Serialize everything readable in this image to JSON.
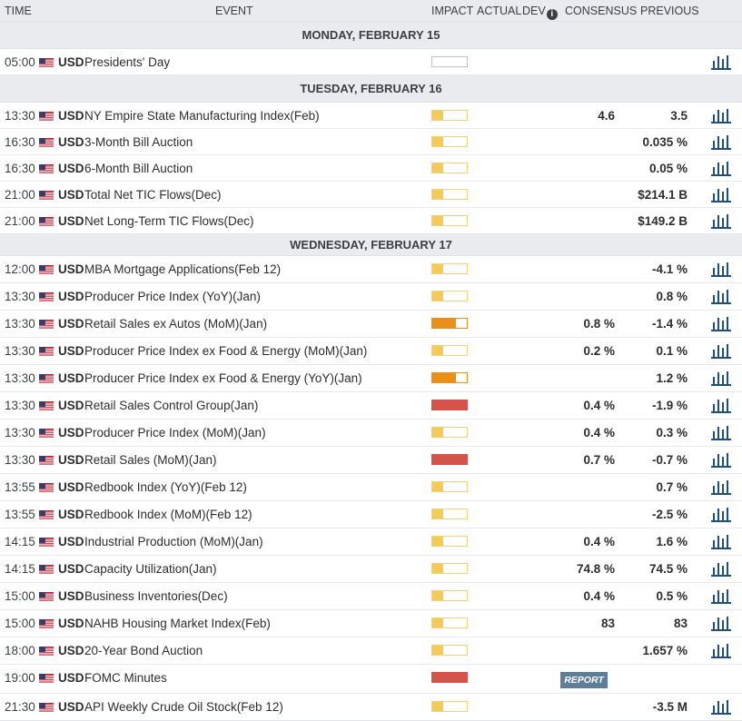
{
  "header": {
    "time": "TIME",
    "event": "EVENT",
    "impact": "IMPACT",
    "actual": "ACTUAL",
    "dev": "DEV",
    "consensus": "CONSENSUS",
    "previous": "PREVIOUS"
  },
  "colors": {
    "impact_low": "#f5c95a",
    "impact_medium": "#e9901a",
    "impact_high": "#d4534b",
    "chart_icon": "#1f4f7a",
    "report_button": "#5e7d99"
  },
  "days": [
    {
      "label": "MONDAY, FEBRUARY 15",
      "events": [
        {
          "time": "05:00",
          "currency": "USD",
          "name": "Presidents' Day",
          "impact": "none",
          "consensus": "",
          "previous": "",
          "chart": true
        }
      ]
    },
    {
      "label": "TUESDAY, FEBRUARY 16",
      "events": [
        {
          "time": "13:30",
          "currency": "USD",
          "name": "NY Empire State Manufacturing Index(Feb)",
          "impact": "low",
          "consensus": "4.6",
          "previous": "3.5",
          "chart": true
        },
        {
          "time": "16:30",
          "currency": "USD",
          "name": "3-Month Bill Auction",
          "impact": "low",
          "consensus": "",
          "previous": "0.035 %",
          "chart": true
        },
        {
          "time": "16:30",
          "currency": "USD",
          "name": "6-Month Bill Auction",
          "impact": "low",
          "consensus": "",
          "previous": "0.05 %",
          "chart": true
        },
        {
          "time": "21:00",
          "currency": "USD",
          "name": "Total Net TIC Flows(Dec)",
          "impact": "low",
          "consensus": "",
          "previous": "$214.1 B",
          "chart": true
        },
        {
          "time": "21:00",
          "currency": "USD",
          "name": "Net Long-Term TIC Flows(Dec)",
          "impact": "low",
          "consensus": "",
          "previous": "$149.2 B",
          "chart": true
        }
      ]
    },
    {
      "label": "WEDNESDAY, FEBRUARY 17",
      "events": [
        {
          "time": "12:00",
          "currency": "USD",
          "name": "MBA Mortgage Applications(Feb 12)",
          "impact": "low",
          "consensus": "",
          "previous": "-4.1 %",
          "chart": true
        },
        {
          "time": "13:30",
          "currency": "USD",
          "name": "Producer Price Index (YoY)(Jan)",
          "impact": "low",
          "consensus": "",
          "previous": "0.8 %",
          "chart": true
        },
        {
          "time": "13:30",
          "currency": "USD",
          "name": "Retail Sales ex Autos (MoM)(Jan)",
          "impact": "medium",
          "consensus": "0.8 %",
          "previous": "-1.4 %",
          "chart": true
        },
        {
          "time": "13:30",
          "currency": "USD",
          "name": "Producer Price Index ex Food & Energy (MoM)(Jan)",
          "impact": "low",
          "consensus": "0.2 %",
          "previous": "0.1 %",
          "chart": true
        },
        {
          "time": "13:30",
          "currency": "USD",
          "name": "Producer Price Index ex Food & Energy (YoY)(Jan)",
          "impact": "medium",
          "consensus": "",
          "previous": "1.2 %",
          "chart": true
        },
        {
          "time": "13:30",
          "currency": "USD",
          "name": "Retail Sales Control Group(Jan)",
          "impact": "high",
          "consensus": "0.4 %",
          "previous": "-1.9 %",
          "chart": true
        },
        {
          "time": "13:30",
          "currency": "USD",
          "name": "Producer Price Index (MoM)(Jan)",
          "impact": "low",
          "consensus": "0.4 %",
          "previous": "0.3 %",
          "chart": true
        },
        {
          "time": "13:30",
          "currency": "USD",
          "name": "Retail Sales (MoM)(Jan)",
          "impact": "high",
          "consensus": "0.7 %",
          "previous": "-0.7 %",
          "chart": true
        },
        {
          "time": "13:55",
          "currency": "USD",
          "name": "Redbook Index (YoY)(Feb 12)",
          "impact": "low",
          "consensus": "",
          "previous": "0.7 %",
          "chart": true
        },
        {
          "time": "13:55",
          "currency": "USD",
          "name": "Redbook Index (MoM)(Feb 12)",
          "impact": "low",
          "consensus": "",
          "previous": "-2.5 %",
          "chart": true
        },
        {
          "time": "14:15",
          "currency": "USD",
          "name": "Industrial Production (MoM)(Jan)",
          "impact": "low",
          "consensus": "0.4 %",
          "previous": "1.6 %",
          "chart": true
        },
        {
          "time": "14:15",
          "currency": "USD",
          "name": "Capacity Utilization(Jan)",
          "impact": "low",
          "consensus": "74.8 %",
          "previous": "74.5 %",
          "chart": true
        },
        {
          "time": "15:00",
          "currency": "USD",
          "name": "Business Inventories(Dec)",
          "impact": "low",
          "consensus": "0.4 %",
          "previous": "0.5 %",
          "chart": true
        },
        {
          "time": "15:00",
          "currency": "USD",
          "name": "NAHB Housing Market Index(Feb)",
          "impact": "low",
          "consensus": "83",
          "previous": "83",
          "chart": true
        },
        {
          "time": "18:00",
          "currency": "USD",
          "name": "20-Year Bond Auction",
          "impact": "low",
          "consensus": "",
          "previous": "1.657 %",
          "chart": true
        },
        {
          "time": "19:00",
          "currency": "USD",
          "name": "FOMC Minutes",
          "impact": "high",
          "consensus": "",
          "previous": "",
          "chart": false,
          "report": "REPORT"
        },
        {
          "time": "21:30",
          "currency": "USD",
          "name": "API Weekly Crude Oil Stock(Feb 12)",
          "impact": "low",
          "consensus": "",
          "previous": "-3.5 M",
          "chart": true
        }
      ]
    }
  ]
}
